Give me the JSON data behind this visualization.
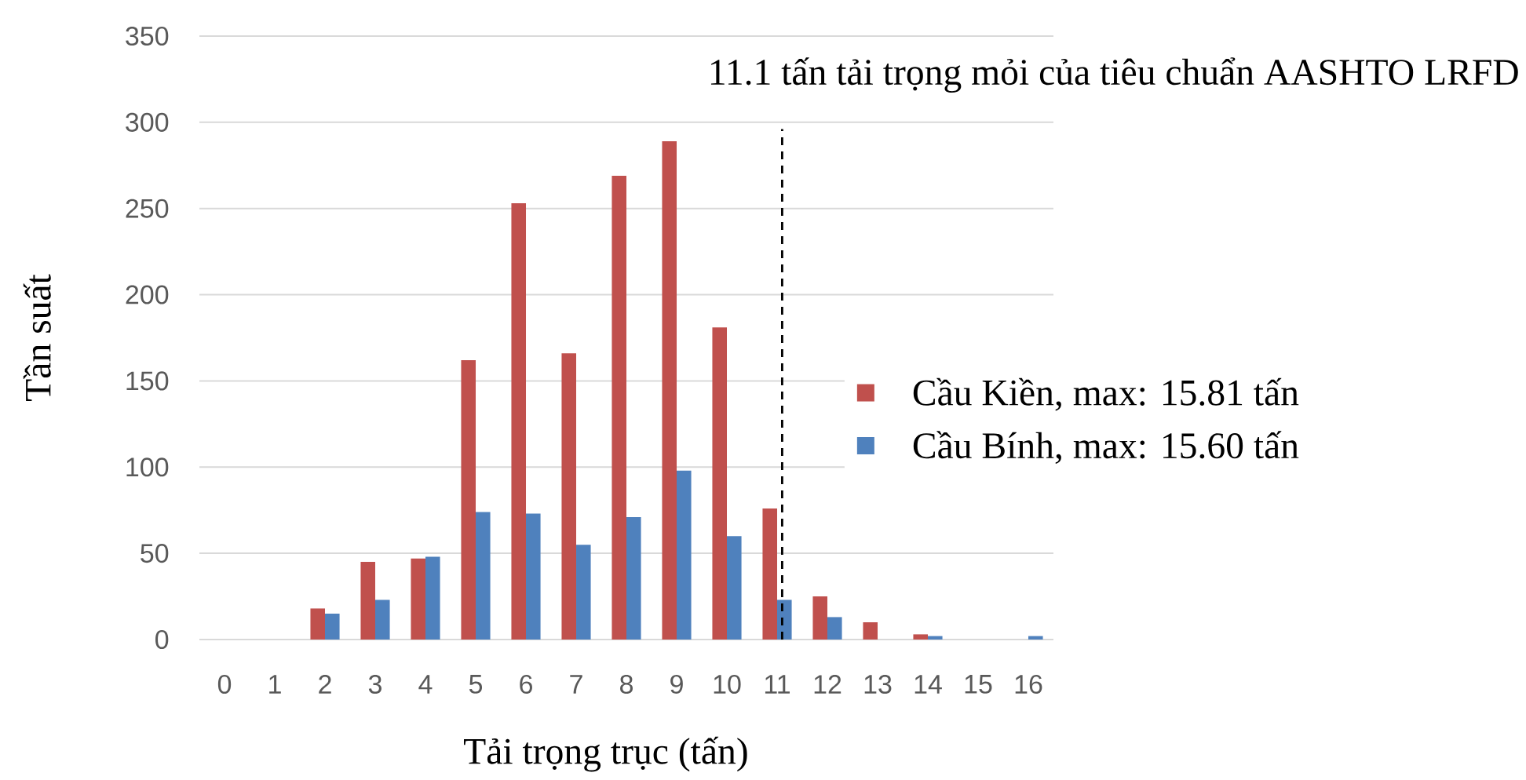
{
  "chart_data": {
    "type": "bar",
    "x": [
      0,
      1,
      2,
      3,
      4,
      5,
      6,
      7,
      8,
      9,
      10,
      11,
      12,
      13,
      14,
      15,
      16
    ],
    "xlim": [
      -0.5,
      16.5
    ],
    "xticks": [
      0,
      1,
      2,
      3,
      4,
      5,
      6,
      7,
      8,
      9,
      10,
      11,
      12,
      13,
      14,
      15,
      16
    ],
    "xlabel": "Tải trọng trục (tấn)",
    "ylabel": "Tần suất",
    "ylim": [
      0,
      350
    ],
    "yticks": [
      0,
      50,
      100,
      150,
      200,
      250,
      300,
      350
    ],
    "grid": "y",
    "legend": "right",
    "series": [
      {
        "name": "Cầu Kiền, max: 15.81 tấn",
        "color": "#c0504d",
        "values": [
          0,
          0,
          18,
          45,
          47,
          162,
          253,
          166,
          269,
          289,
          181,
          76,
          25,
          10,
          3,
          0,
          0
        ]
      },
      {
        "name": "Cầu Bính, max: 15.60 tấn",
        "color": "#4f81bd",
        "values": [
          0,
          0,
          15,
          23,
          48,
          74,
          73,
          55,
          71,
          98,
          60,
          23,
          13,
          0,
          2,
          0,
          2
        ]
      }
    ],
    "ref_lines": [
      {
        "axis": "x",
        "value": 11.1,
        "label": "11.1 tấn tải trọng mỏi của tiêu chuẩn AASHTO LRFD",
        "color": "#000000",
        "line_style": "dashed"
      }
    ]
  }
}
